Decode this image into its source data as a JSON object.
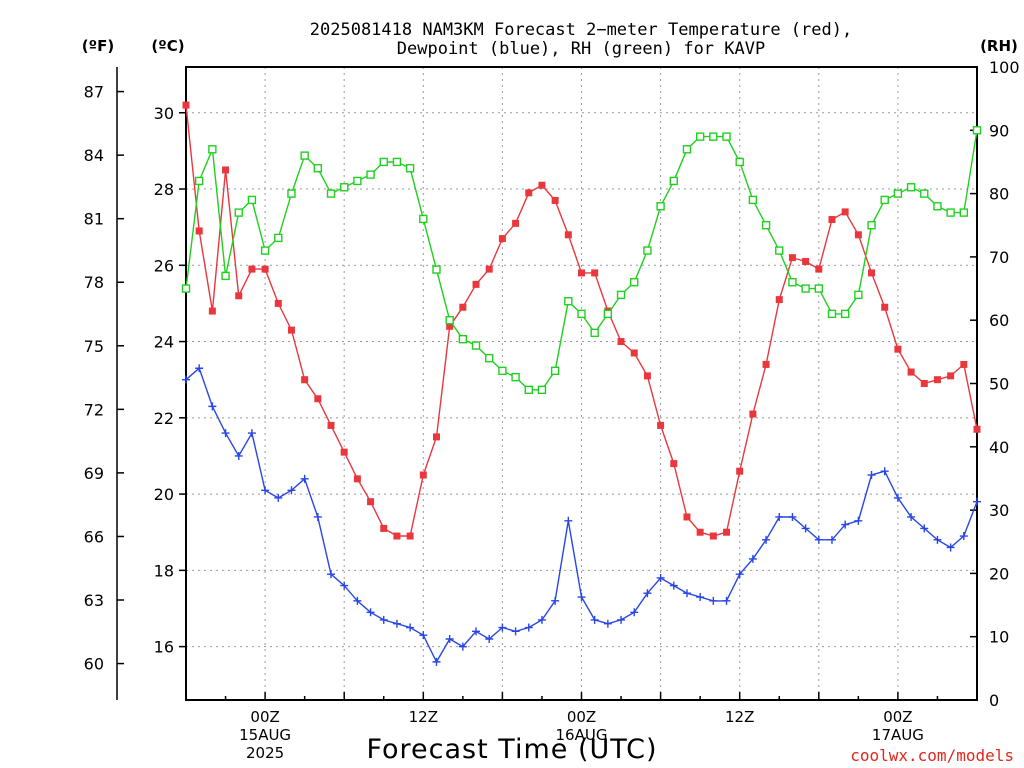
{
  "chart_data": {
    "type": "line",
    "title_lines": [
      "2025081418 NAM3KM Forecast 2−meter Temperature (red),",
      "Dewpoint (blue), RH (green) for KAVP"
    ],
    "xlabel": "Forecast Time (UTC)",
    "credit": "coolwx.com/models",
    "units": {
      "f": "(ºF)",
      "c": "(ºC)",
      "rh": "(RH)"
    },
    "x_range_hours": [
      18,
      78
    ],
    "x_ticks": [
      {
        "hour": 24,
        "lines": [
          "00Z",
          "15AUG",
          "2025"
        ]
      },
      {
        "hour": 36,
        "lines": [
          "12Z"
        ]
      },
      {
        "hour": 48,
        "lines": [
          "00Z",
          "16AUG"
        ]
      },
      {
        "hour": 60,
        "lines": [
          "12Z"
        ]
      },
      {
        "hour": 72,
        "lines": [
          "00Z",
          "17AUG"
        ]
      }
    ],
    "y_celsius": {
      "range": [
        14.6,
        31.2
      ],
      "ticks": [
        16,
        18,
        20,
        22,
        24,
        26,
        28,
        30
      ]
    },
    "y_fahrenheit": {
      "ticks": [
        60,
        63,
        66,
        69,
        72,
        75,
        78,
        81,
        84,
        87
      ]
    },
    "y_rh": {
      "range": [
        0,
        100
      ],
      "ticks": [
        0,
        10,
        20,
        30,
        40,
        50,
        60,
        70,
        80,
        90,
        100
      ]
    },
    "grid": true,
    "series": [
      {
        "key": "temperature",
        "axis": "celsius",
        "color": "#e8383d",
        "marker": "filled-square",
        "points": [
          [
            18,
            30.2
          ],
          [
            19,
            26.9
          ],
          [
            20,
            24.8
          ],
          [
            21,
            28.5
          ],
          [
            22,
            25.2
          ],
          [
            23,
            25.9
          ],
          [
            24,
            25.9
          ],
          [
            25,
            25.0
          ],
          [
            26,
            24.3
          ],
          [
            27,
            23.0
          ],
          [
            28,
            22.5
          ],
          [
            29,
            21.8
          ],
          [
            30,
            21.1
          ],
          [
            31,
            20.4
          ],
          [
            32,
            19.8
          ],
          [
            33,
            19.1
          ],
          [
            34,
            18.9
          ],
          [
            35,
            18.9
          ],
          [
            36,
            20.5
          ],
          [
            37,
            21.5
          ],
          [
            38,
            24.4
          ],
          [
            39,
            24.9
          ],
          [
            40,
            25.5
          ],
          [
            41,
            25.9
          ],
          [
            42,
            26.7
          ],
          [
            43,
            27.1
          ],
          [
            44,
            27.9
          ],
          [
            45,
            28.1
          ],
          [
            46,
            27.7
          ],
          [
            47,
            26.8
          ],
          [
            48,
            25.8
          ],
          [
            49,
            25.8
          ],
          [
            50,
            24.8
          ],
          [
            51,
            24.0
          ],
          [
            52,
            23.7
          ],
          [
            53,
            23.1
          ],
          [
            54,
            21.8
          ],
          [
            55,
            20.8
          ],
          [
            56,
            19.4
          ],
          [
            57,
            19.0
          ],
          [
            58,
            18.9
          ],
          [
            59,
            19.0
          ],
          [
            60,
            20.6
          ],
          [
            61,
            22.1
          ],
          [
            62,
            23.4
          ],
          [
            63,
            25.1
          ],
          [
            64,
            26.2
          ],
          [
            65,
            26.1
          ],
          [
            66,
            25.9
          ],
          [
            67,
            27.2
          ],
          [
            68,
            27.4
          ],
          [
            69,
            26.8
          ],
          [
            70,
            25.8
          ],
          [
            71,
            24.9
          ],
          [
            72,
            23.8
          ],
          [
            73,
            23.2
          ],
          [
            74,
            22.9
          ],
          [
            75,
            23.0
          ],
          [
            76,
            23.1
          ],
          [
            77,
            23.4
          ],
          [
            78,
            21.7
          ]
        ]
      },
      {
        "key": "dewpoint",
        "axis": "celsius",
        "color": "#2846e6",
        "marker": "plus",
        "points": [
          [
            18,
            23.0
          ],
          [
            19,
            23.3
          ],
          [
            20,
            22.3
          ],
          [
            21,
            21.6
          ],
          [
            22,
            21.0
          ],
          [
            23,
            21.6
          ],
          [
            24,
            20.1
          ],
          [
            25,
            19.9
          ],
          [
            26,
            20.1
          ],
          [
            27,
            20.4
          ],
          [
            28,
            19.4
          ],
          [
            29,
            17.9
          ],
          [
            30,
            17.6
          ],
          [
            31,
            17.2
          ],
          [
            32,
            16.9
          ],
          [
            33,
            16.7
          ],
          [
            34,
            16.6
          ],
          [
            35,
            16.5
          ],
          [
            36,
            16.3
          ],
          [
            37,
            15.6
          ],
          [
            38,
            16.2
          ],
          [
            39,
            16.0
          ],
          [
            40,
            16.4
          ],
          [
            41,
            16.2
          ],
          [
            42,
            16.5
          ],
          [
            43,
            16.4
          ],
          [
            44,
            16.5
          ],
          [
            45,
            16.7
          ],
          [
            46,
            17.2
          ],
          [
            47,
            19.3
          ],
          [
            48,
            17.3
          ],
          [
            49,
            16.7
          ],
          [
            50,
            16.6
          ],
          [
            51,
            16.7
          ],
          [
            52,
            16.9
          ],
          [
            53,
            17.4
          ],
          [
            54,
            17.8
          ],
          [
            55,
            17.6
          ],
          [
            56,
            17.4
          ],
          [
            57,
            17.3
          ],
          [
            58,
            17.2
          ],
          [
            59,
            17.2
          ],
          [
            60,
            17.9
          ],
          [
            61,
            18.3
          ],
          [
            62,
            18.8
          ],
          [
            63,
            19.4
          ],
          [
            64,
            19.4
          ],
          [
            65,
            19.1
          ],
          [
            66,
            18.8
          ],
          [
            67,
            18.8
          ],
          [
            68,
            19.2
          ],
          [
            69,
            19.3
          ],
          [
            70,
            20.5
          ],
          [
            71,
            20.6
          ],
          [
            72,
            19.9
          ],
          [
            73,
            19.4
          ],
          [
            74,
            19.1
          ],
          [
            75,
            18.8
          ],
          [
            76,
            18.6
          ],
          [
            77,
            18.9
          ],
          [
            78,
            19.8
          ]
        ]
      },
      {
        "key": "rh",
        "axis": "rh",
        "color": "#20d020",
        "marker": "open-square",
        "points": [
          [
            18,
            65
          ],
          [
            19,
            82
          ],
          [
            20,
            87
          ],
          [
            21,
            67
          ],
          [
            22,
            77
          ],
          [
            23,
            79
          ],
          [
            24,
            71
          ],
          [
            25,
            73
          ],
          [
            26,
            80
          ],
          [
            27,
            86
          ],
          [
            28,
            84
          ],
          [
            29,
            80
          ],
          [
            30,
            81
          ],
          [
            31,
            82
          ],
          [
            32,
            83
          ],
          [
            33,
            85
          ],
          [
            34,
            85
          ],
          [
            35,
            84
          ],
          [
            36,
            76
          ],
          [
            37,
            68
          ],
          [
            38,
            60
          ],
          [
            39,
            57
          ],
          [
            40,
            56
          ],
          [
            41,
            54
          ],
          [
            42,
            52
          ],
          [
            43,
            51
          ],
          [
            44,
            49
          ],
          [
            45,
            49
          ],
          [
            46,
            52
          ],
          [
            47,
            63
          ],
          [
            48,
            61
          ],
          [
            49,
            58
          ],
          [
            50,
            61
          ],
          [
            51,
            64
          ],
          [
            52,
            66
          ],
          [
            53,
            71
          ],
          [
            54,
            78
          ],
          [
            55,
            82
          ],
          [
            56,
            87
          ],
          [
            57,
            89
          ],
          [
            58,
            89
          ],
          [
            59,
            89
          ],
          [
            60,
            85
          ],
          [
            61,
            79
          ],
          [
            62,
            75
          ],
          [
            63,
            71
          ],
          [
            64,
            66
          ],
          [
            65,
            65
          ],
          [
            66,
            65
          ],
          [
            67,
            61
          ],
          [
            68,
            61
          ],
          [
            69,
            64
          ],
          [
            70,
            75
          ],
          [
            71,
            79
          ],
          [
            72,
            80
          ],
          [
            73,
            81
          ],
          [
            74,
            80
          ],
          [
            75,
            78
          ],
          [
            76,
            77
          ],
          [
            77,
            77
          ],
          [
            78,
            90
          ]
        ]
      }
    ]
  }
}
